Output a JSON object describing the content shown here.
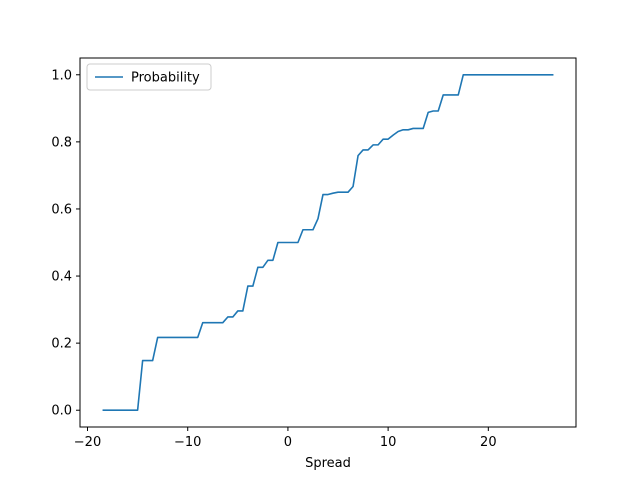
{
  "chart_data": {
    "type": "line",
    "title": "",
    "xlabel": "Spread",
    "ylabel": "",
    "xlim": [
      -20.75,
      28.75
    ],
    "ylim": [
      -0.05,
      1.05
    ],
    "xticks": [
      -20,
      -10,
      0,
      10,
      20
    ],
    "yticks": [
      0.0,
      0.2,
      0.4,
      0.6,
      0.8,
      1.0
    ],
    "xtick_labels": [
      "−20",
      "−10",
      "0",
      "10",
      "20"
    ],
    "ytick_labels": [
      "0.0",
      "0.2",
      "0.4",
      "0.6",
      "0.8",
      "1.0"
    ],
    "grid": false,
    "legend": {
      "position": "upper-left",
      "entries": [
        "Probability"
      ]
    },
    "series": [
      {
        "name": "Probability",
        "color": "#1f77b4",
        "x": [
          -18.5,
          -15.0,
          -14.5,
          -13.5,
          -13.0,
          -9.0,
          -8.5,
          -6.5,
          -6.0,
          -5.5,
          -5.0,
          -4.5,
          -4.0,
          -3.5,
          -3.0,
          -2.5,
          -2.0,
          -1.5,
          -1.0,
          1.0,
          1.5,
          2.5,
          3.0,
          3.5,
          4.0,
          4.5,
          5.0,
          6.0,
          6.5,
          7.0,
          7.5,
          8.0,
          8.5,
          9.0,
          9.5,
          10.0,
          10.5,
          11.0,
          11.5,
          12.0,
          12.5,
          13.5,
          14.0,
          14.5,
          15.0,
          15.5,
          17.0,
          17.5,
          26.5
        ],
        "y": [
          0.0,
          0.0,
          0.148,
          0.148,
          0.217,
          0.217,
          0.261,
          0.261,
          0.278,
          0.278,
          0.296,
          0.296,
          0.37,
          0.37,
          0.426,
          0.426,
          0.447,
          0.447,
          0.5,
          0.5,
          0.538,
          0.538,
          0.571,
          0.643,
          0.643,
          0.647,
          0.65,
          0.65,
          0.667,
          0.759,
          0.776,
          0.776,
          0.791,
          0.791,
          0.808,
          0.808,
          0.82,
          0.831,
          0.836,
          0.836,
          0.84,
          0.84,
          0.888,
          0.892,
          0.892,
          0.94,
          0.94,
          1.0,
          1.0
        ]
      }
    ]
  }
}
